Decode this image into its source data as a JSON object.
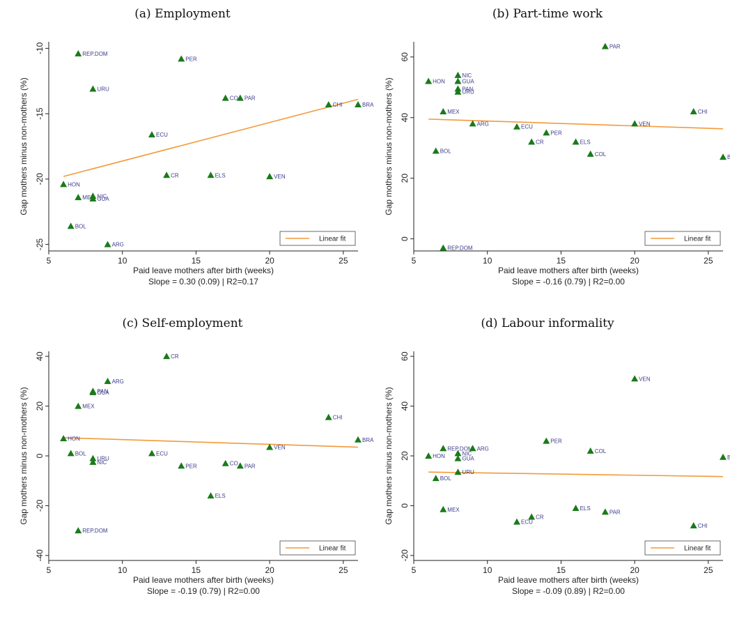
{
  "chart_data": [
    {
      "type": "scatter",
      "panel_title": "(a) Employment",
      "xlabel": "Paid leave mothers after birth (weeks)",
      "ylabel": "Gap mothers minus non-mothers (%)",
      "xlim": [
        5,
        26
      ],
      "ylim": [
        -25.5,
        -9.5
      ],
      "xticks": [
        5,
        10,
        15,
        20,
        25
      ],
      "yticks": [
        -25,
        -20,
        -15,
        -10
      ],
      "note": "Slope = 0.30 (0.09) | R2=0.17",
      "legend": "Linear fit",
      "fit": {
        "x": [
          6,
          26
        ],
        "y": [
          -19.8,
          -13.9
        ]
      },
      "points": [
        {
          "label": "REP.DOM",
          "x": 7,
          "y": -10.4
        },
        {
          "label": "PER",
          "x": 14,
          "y": -10.8
        },
        {
          "label": "URU",
          "x": 8,
          "y": -13.1
        },
        {
          "label": "CO",
          "x": 17,
          "y": -13.8
        },
        {
          "label": "PAR",
          "x": 18,
          "y": -13.8
        },
        {
          "label": "CHI",
          "x": 24,
          "y": -14.3
        },
        {
          "label": "BRA",
          "x": 26,
          "y": -14.3
        },
        {
          "label": "ECU",
          "x": 12,
          "y": -16.6
        },
        {
          "label": "CR",
          "x": 13,
          "y": -19.7
        },
        {
          "label": "ELS",
          "x": 16,
          "y": -19.7
        },
        {
          "label": "VEN",
          "x": 20,
          "y": -19.8
        },
        {
          "label": "HON",
          "x": 6,
          "y": -20.4
        },
        {
          "label": "NIC",
          "x": 8,
          "y": -21.3
        },
        {
          "label": "ME",
          "x": 7,
          "y": -21.4
        },
        {
          "label": "GUA",
          "x": 8,
          "y": -21.5
        },
        {
          "label": "BOL",
          "x": 6.5,
          "y": -23.6
        },
        {
          "label": "ARG",
          "x": 9,
          "y": -25
        }
      ]
    },
    {
      "type": "scatter",
      "panel_title": "(b) Part-time work",
      "xlabel": "Paid leave mothers after birth (weeks)",
      "ylabel": "Gap mothers minus non-mothers (%)",
      "xlim": [
        5,
        26
      ],
      "ylim": [
        -4,
        65
      ],
      "xticks": [
        5,
        10,
        15,
        20,
        25
      ],
      "yticks": [
        0,
        20,
        40,
        60
      ],
      "note": "Slope = -0.16 (0.79) | R2=0.00",
      "legend": "Linear fit",
      "fit": {
        "x": [
          6,
          26
        ],
        "y": [
          39.5,
          36.3
        ]
      },
      "points": [
        {
          "label": "PAR",
          "x": 18,
          "y": 63.5
        },
        {
          "label": "NIC",
          "x": 8,
          "y": 54
        },
        {
          "label": "GUA",
          "x": 8,
          "y": 52
        },
        {
          "label": "HON",
          "x": 6,
          "y": 52
        },
        {
          "label": "PAN",
          "x": 8,
          "y": 49.5
        },
        {
          "label": "URU",
          "x": 8,
          "y": 48.5
        },
        {
          "label": "MEX",
          "x": 7,
          "y": 42
        },
        {
          "label": "CHI",
          "x": 24,
          "y": 42
        },
        {
          "label": "ARG",
          "x": 9,
          "y": 38
        },
        {
          "label": "VEN",
          "x": 20,
          "y": 38
        },
        {
          "label": "ECU",
          "x": 12,
          "y": 37
        },
        {
          "label": "PER",
          "x": 14,
          "y": 35
        },
        {
          "label": "CR",
          "x": 13,
          "y": 32
        },
        {
          "label": "ELS",
          "x": 16,
          "y": 32
        },
        {
          "label": "BOL",
          "x": 6.5,
          "y": 29
        },
        {
          "label": "COL",
          "x": 17,
          "y": 28
        },
        {
          "label": "BR",
          "x": 26,
          "y": 27
        },
        {
          "label": "REP.DOM",
          "x": 7,
          "y": -3
        }
      ]
    },
    {
      "type": "scatter",
      "panel_title": "(c) Self-employment",
      "xlabel": "Paid leave mothers after birth (weeks)",
      "ylabel": "Gap mothers minus non-mothers (%)",
      "xlim": [
        5,
        26
      ],
      "ylim": [
        -42,
        42
      ],
      "xticks": [
        5,
        10,
        15,
        20,
        25
      ],
      "yticks": [
        -40,
        -20,
        0,
        20,
        40
      ],
      "note": "Slope = -0.19 (0.79) | R2=0.00",
      "legend": "Linear fit",
      "fit": {
        "x": [
          6,
          26
        ],
        "y": [
          7.3,
          3.5
        ]
      },
      "points": [
        {
          "label": "CR",
          "x": 13,
          "y": 40
        },
        {
          "label": "ARG",
          "x": 9,
          "y": 30
        },
        {
          "label": "PAN",
          "x": 8,
          "y": 26
        },
        {
          "label": "GUA",
          "x": 8,
          "y": 25.5
        },
        {
          "label": "MEX",
          "x": 7,
          "y": 20
        },
        {
          "label": "CHI",
          "x": 24,
          "y": 15.5
        },
        {
          "label": "HON",
          "x": 6,
          "y": 7
        },
        {
          "label": "BRA",
          "x": 26,
          "y": 6.5
        },
        {
          "label": "VEN",
          "x": 20,
          "y": 3.5
        },
        {
          "label": "BOL",
          "x": 6.5,
          "y": 1
        },
        {
          "label": "ECU",
          "x": 12,
          "y": 1
        },
        {
          "label": "URU",
          "x": 8,
          "y": -1
        },
        {
          "label": "NIC",
          "x": 8,
          "y": -2.5
        },
        {
          "label": "CO",
          "x": 17,
          "y": -3
        },
        {
          "label": "PER",
          "x": 14,
          "y": -4
        },
        {
          "label": "PAR",
          "x": 18,
          "y": -4
        },
        {
          "label": "ELS",
          "x": 16,
          "y": -16
        },
        {
          "label": "REP.DOM",
          "x": 7,
          "y": -30
        }
      ]
    },
    {
      "type": "scatter",
      "panel_title": "(d) Labour informality",
      "xlabel": "Paid leave mothers after birth (weeks)",
      "ylabel": "Gap mothers minus non-mothers (%)",
      "xlim": [
        5,
        26
      ],
      "ylim": [
        -22,
        62
      ],
      "xticks": [
        5,
        10,
        15,
        20,
        25
      ],
      "yticks": [
        -20,
        0,
        20,
        40,
        60
      ],
      "note": "Slope = -0.09 (0.89) | R2=0.00",
      "legend": "Linear fit",
      "fit": {
        "x": [
          6,
          26
        ],
        "y": [
          13.5,
          11.7
        ]
      },
      "points": [
        {
          "label": "VEN",
          "x": 20,
          "y": 51
        },
        {
          "label": "PER",
          "x": 14,
          "y": 26
        },
        {
          "label": "REP.DOM",
          "x": 7,
          "y": 23
        },
        {
          "label": "ARG",
          "x": 9,
          "y": 23
        },
        {
          "label": "COL",
          "x": 17,
          "y": 22
        },
        {
          "label": "NIC",
          "x": 8,
          "y": 21
        },
        {
          "label": "HON",
          "x": 6,
          "y": 20
        },
        {
          "label": "BR",
          "x": 26,
          "y": 19.5
        },
        {
          "label": "GUA",
          "x": 8,
          "y": 19
        },
        {
          "label": "URU",
          "x": 8,
          "y": 13.5
        },
        {
          "label": "BOL",
          "x": 6.5,
          "y": 11
        },
        {
          "label": "MEX",
          "x": 7,
          "y": -1.5
        },
        {
          "label": "ELS",
          "x": 16,
          "y": -1
        },
        {
          "label": "PAR",
          "x": 18,
          "y": -2.5
        },
        {
          "label": "CR",
          "x": 13,
          "y": -4.5
        },
        {
          "label": "ECU",
          "x": 12,
          "y": -6.5
        },
        {
          "label": "CHI",
          "x": 24,
          "y": -8
        }
      ]
    }
  ],
  "colors": {
    "marker": "#1a7a1a",
    "fit_line": "#f29a3a",
    "axis": "#222222",
    "label": "#3c3c8c"
  }
}
